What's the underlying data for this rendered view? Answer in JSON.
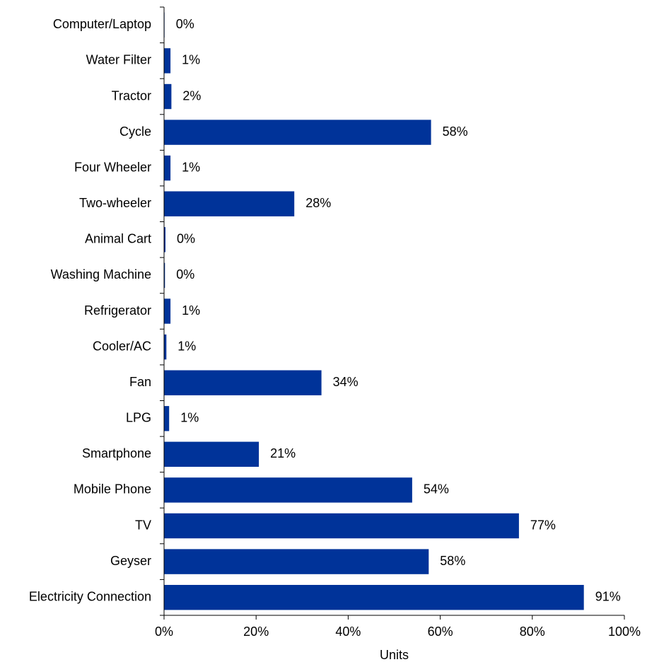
{
  "chart_data": {
    "type": "bar",
    "orientation": "horizontal",
    "title": "",
    "xlabel": "Units",
    "ylabel": "",
    "xlim": [
      0,
      100
    ],
    "grid": false,
    "legend": "none",
    "categories": [
      "Computer/Laptop",
      "Water Filter",
      "Tractor",
      "Cycle",
      "Four Wheeler",
      "Two-wheeler",
      "Animal Cart",
      "Washing Machine",
      "Refrigerator",
      "Cooler/AC",
      "Fan",
      "LPG",
      "Smartphone",
      "Mobile Phone",
      "TV",
      "Geyser",
      "Electricity Connection"
    ],
    "values": [
      0.1,
      1.4,
      1.6,
      58.0,
      1.4,
      28.3,
      0.3,
      0.2,
      1.4,
      0.5,
      34.2,
      1.1,
      20.6,
      53.9,
      77.1,
      57.5,
      91.2
    ],
    "value_labels": [
      "0%",
      "1%",
      "2%",
      "58%",
      "1%",
      "28%",
      "0%",
      "0%",
      "1%",
      "1%",
      "34%",
      "1%",
      "21%",
      "54%",
      "77%",
      "58%",
      "91%"
    ],
    "x_ticks": [
      "0%",
      "20%",
      "40%",
      "60%",
      "80%",
      "100%"
    ],
    "bar_color": "#003399"
  }
}
